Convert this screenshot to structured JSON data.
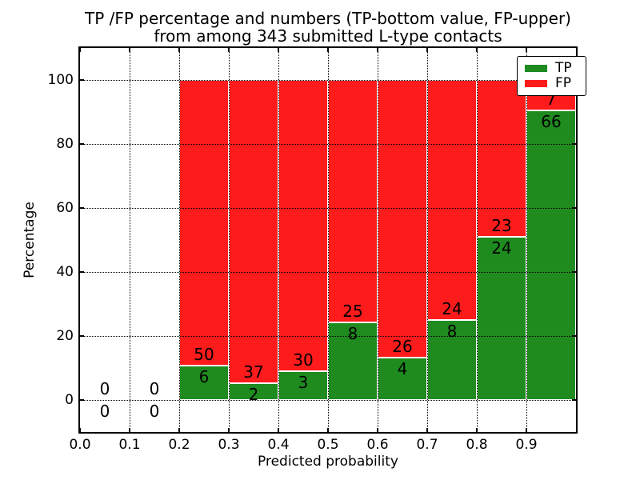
{
  "chart_data": {
    "type": "bar",
    "stacked": true,
    "normalized_to_percent": true,
    "title": "TP /FP percentage and numbers (TP-bottom value, FP-upper)",
    "subtitle": "from among 343 submitted L-type contacts",
    "xlabel": "Predicted probability",
    "ylabel": "Percentage",
    "xlim": [
      0.0,
      1.0
    ],
    "ylim": [
      -10,
      110
    ],
    "grid": true,
    "legend_position": "upper-right",
    "bin_edges": [
      0.0,
      0.1,
      0.2,
      0.3,
      0.4,
      0.5,
      0.6,
      0.7,
      0.8,
      0.9,
      1.0
    ],
    "categories": [
      "0.0-0.1",
      "0.1-0.2",
      "0.2-0.3",
      "0.3-0.4",
      "0.4-0.5",
      "0.5-0.6",
      "0.6-0.7",
      "0.7-0.8",
      "0.8-0.9",
      "0.9-1.0"
    ],
    "series": [
      {
        "name": "TP",
        "color": "#1f8b1f",
        "values": [
          0,
          0,
          6,
          2,
          3,
          8,
          4,
          8,
          24,
          66
        ]
      },
      {
        "name": "FP",
        "color": "#fe1b1b",
        "values": [
          0,
          0,
          50,
          37,
          30,
          25,
          26,
          24,
          23,
          7
        ]
      }
    ],
    "total_contacts": 343,
    "x_ticks": [
      "0.0",
      "0.1",
      "0.2",
      "0.3",
      "0.4",
      "0.5",
      "0.6",
      "0.7",
      "0.8",
      "0.9"
    ],
    "x_tick_values": [
      0.0,
      0.1,
      0.2,
      0.3,
      0.4,
      0.5,
      0.6,
      0.7,
      0.8,
      0.9
    ],
    "y_ticks": [
      "0",
      "20",
      "40",
      "60",
      "80",
      "100"
    ],
    "y_tick_values": [
      0,
      20,
      40,
      60,
      80,
      100
    ]
  },
  "colors": {
    "tp_green": "#1f8b1f",
    "fp_red": "#fe1b1b",
    "bar_edge": "#ffffff",
    "axes": "#000000",
    "background": "#ffffff"
  }
}
